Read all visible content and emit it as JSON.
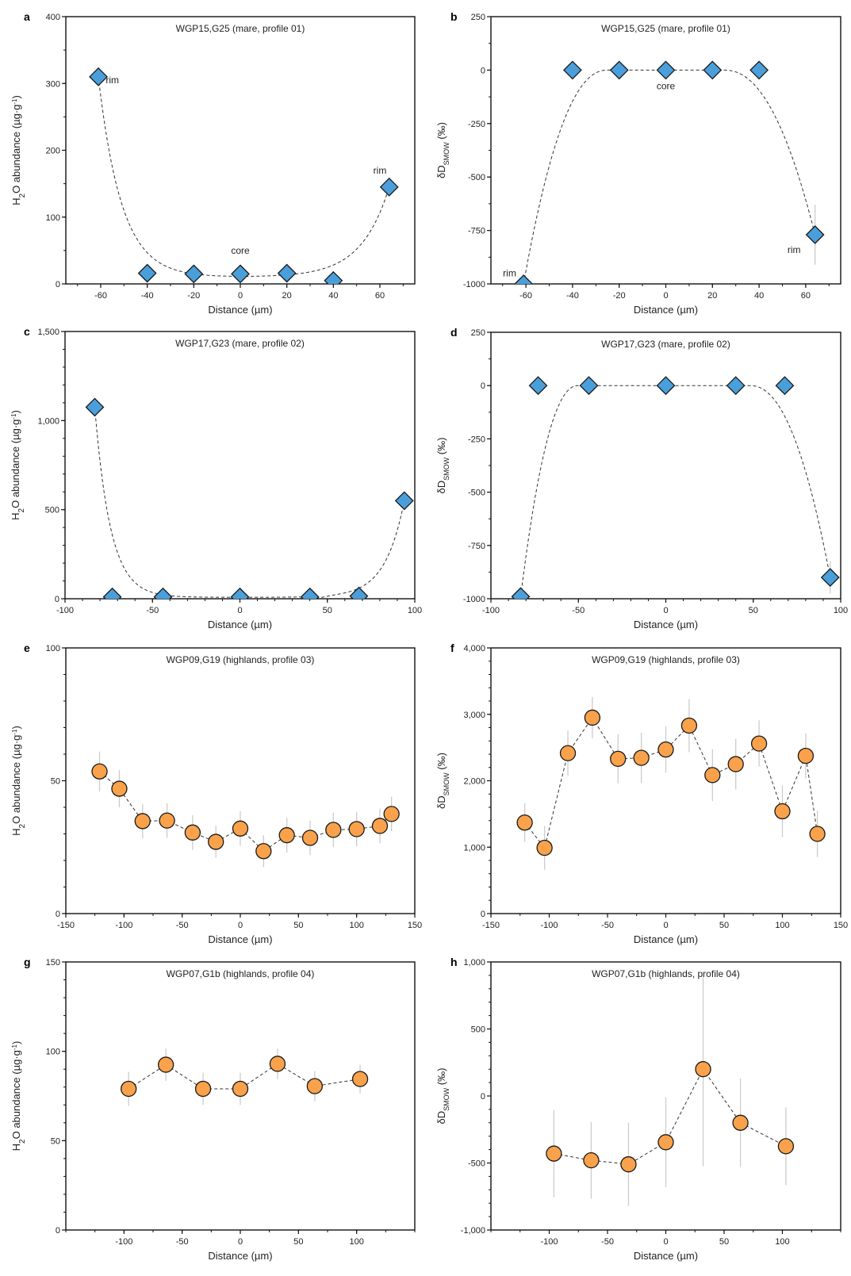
{
  "figure": {
    "marker_colors": {
      "mare": "#4A9FDB",
      "highlands": "#F9A24B"
    },
    "marker_edge": "#1a1a1a",
    "errorbar_color": "#cccccc",
    "line_color": "#333333"
  },
  "chart_data": [
    {
      "id": "a",
      "type": "scatter",
      "letter": "a",
      "title": "WGP15,G25 (mare, profile 01)",
      "xlabel": "Distance (µm)",
      "ylabel": "H₂O abundance (µg·g⁻¹)",
      "ylabel_kind": "h2o",
      "xlim": [
        -75,
        75
      ],
      "ylim": [
        0,
        400
      ],
      "xticks": [
        -60,
        -40,
        -20,
        0,
        20,
        40,
        60
      ],
      "xtick_labels": [
        "-60",
        "-40",
        "-20",
        "0",
        "20",
        "40",
        "60"
      ],
      "xminor": 10,
      "yticks": [
        0,
        100,
        200,
        300,
        400
      ],
      "ytick_labels": [
        "0",
        "100",
        "200",
        "300",
        "400"
      ],
      "yminor": 50,
      "marker": "diamond",
      "group": "mare",
      "connect": "none",
      "fit_curve": {
        "kind": "diffusion_h2o",
        "plateau": 10,
        "left_edge": -61,
        "left_value": 310,
        "right_edge": 64,
        "right_value": 145,
        "left_width": 10,
        "right_width": 12,
        "core_from": -28,
        "core_to": 33,
        "dip": 0
      },
      "points": [
        {
          "x": -61,
          "y": 310,
          "err": 0
        },
        {
          "x": -40,
          "y": 16,
          "err": 0
        },
        {
          "x": -20,
          "y": 15,
          "err": 0
        },
        {
          "x": 0,
          "y": 15,
          "err": 0
        },
        {
          "x": 20,
          "y": 16,
          "err": 0
        },
        {
          "x": 40,
          "y": 5,
          "err": 0
        },
        {
          "x": 64,
          "y": 145,
          "err": 0
        }
      ],
      "annotations": [
        {
          "text": "rim",
          "x": -55,
          "y": 305
        },
        {
          "text": "rim",
          "x": 60,
          "y": 170
        },
        {
          "text": "core",
          "x": 0,
          "y": 50
        }
      ]
    },
    {
      "id": "b",
      "type": "scatter",
      "letter": "b",
      "title": "WGP15,G25 (mare, profile 01)",
      "xlabel": "Distance (µm)",
      "ylabel": "δD_SMOW (‰)",
      "ylabel_kind": "dd",
      "xlim": [
        -75,
        75
      ],
      "ylim": [
        -1000,
        250
      ],
      "xticks": [
        -60,
        -40,
        -20,
        0,
        20,
        40,
        60
      ],
      "xtick_labels": [
        "-60",
        "-40",
        "-20",
        "0",
        "20",
        "40",
        "60"
      ],
      "xminor": 10,
      "yticks": [
        -1000,
        -750,
        -500,
        -250,
        0,
        250
      ],
      "ytick_labels": [
        "-1000",
        "-750",
        "-500",
        "-250",
        "0",
        "250"
      ],
      "yminor": 125,
      "marker": "diamond",
      "group": "mare",
      "connect": "none",
      "fit_curve": {
        "kind": "plateau",
        "top": 0,
        "bottom": -1000,
        "left_x": -61,
        "right_x": 64,
        "right_value": -770,
        "left_knee": -25,
        "right_knee": 25
      },
      "points": [
        {
          "x": -61,
          "y": -1000,
          "err": 0
        },
        {
          "x": -40,
          "y": 0,
          "err": 0
        },
        {
          "x": -20,
          "y": 0,
          "err": 0
        },
        {
          "x": 0,
          "y": 0,
          "err": 0
        },
        {
          "x": 20,
          "y": 0,
          "err": 0
        },
        {
          "x": 40,
          "y": 0,
          "err": 0
        },
        {
          "x": 64,
          "y": -770,
          "err": 140
        }
      ],
      "annotations": [
        {
          "text": "rim",
          "x": -67,
          "y": -950
        },
        {
          "text": "rim",
          "x": 55,
          "y": -840
        },
        {
          "text": "core",
          "x": 0,
          "y": -75
        }
      ]
    },
    {
      "id": "c",
      "type": "scatter",
      "letter": "c",
      "title": "WGP17,G23 (mare, profile 02)",
      "xlabel": "Distance (µm)",
      "ylabel": "H₂O abundance (µg·g⁻¹)",
      "ylabel_kind": "h2o",
      "xlim": [
        -100,
        100
      ],
      "ylim": [
        0,
        1500
      ],
      "xticks": [
        -100,
        -50,
        0,
        50,
        100
      ],
      "xtick_labels": [
        "-100",
        "-50",
        "0",
        "50",
        "100"
      ],
      "xminor": 10,
      "yticks": [
        0,
        500,
        1000,
        1500
      ],
      "ytick_labels": [
        "0",
        "500",
        "1,000",
        "1,500"
      ],
      "yminor": 100,
      "marker": "diamond",
      "group": "mare",
      "connect": "none",
      "fit_curve": {
        "kind": "diffusion_h2o",
        "plateau": 8,
        "left_edge": -83,
        "left_value": 1075,
        "right_edge": 94,
        "right_value": 550,
        "left_width": 9,
        "right_width": 11,
        "core_from": -55,
        "core_to": 45,
        "dip": 8
      },
      "points": [
        {
          "x": -83,
          "y": 1075,
          "err": 0
        },
        {
          "x": -73,
          "y": 10,
          "err": 0
        },
        {
          "x": -44,
          "y": 10,
          "err": 0
        },
        {
          "x": 0,
          "y": 10,
          "err": 0
        },
        {
          "x": 40,
          "y": 10,
          "err": 0
        },
        {
          "x": 68,
          "y": 15,
          "err": 0
        },
        {
          "x": 94,
          "y": 550,
          "err": 0
        }
      ],
      "annotations": []
    },
    {
      "id": "d",
      "type": "scatter",
      "letter": "d",
      "title": "WGP17,G23 (mare, profile 02)",
      "xlabel": "Distance (µm)",
      "ylabel": "δD_SMOW (‰)",
      "ylabel_kind": "dd",
      "xlim": [
        -100,
        100
      ],
      "ylim": [
        -1000,
        250
      ],
      "xticks": [
        -100,
        -50,
        0,
        50,
        100
      ],
      "xtick_labels": [
        "-100",
        "-50",
        "0",
        "50",
        "100"
      ],
      "xminor": 10,
      "yticks": [
        -1000,
        -750,
        -500,
        -250,
        0,
        250
      ],
      "ytick_labels": [
        "-1000",
        "-750",
        "-500",
        "-250",
        "0",
        "250"
      ],
      "yminor": 125,
      "marker": "diamond",
      "group": "mare",
      "connect": "none",
      "fit_curve": {
        "kind": "plateau",
        "top": 0,
        "bottom": -990,
        "left_x": -83,
        "right_x": 94,
        "right_value": -900,
        "left_knee": -50,
        "right_knee": 48
      },
      "points": [
        {
          "x": -83,
          "y": -990,
          "err": 0
        },
        {
          "x": -73,
          "y": 0,
          "err": 0
        },
        {
          "x": -44,
          "y": 0,
          "err": 0
        },
        {
          "x": 0,
          "y": 0,
          "err": 0
        },
        {
          "x": 40,
          "y": 0,
          "err": 0
        },
        {
          "x": 68,
          "y": 0,
          "err": 0
        },
        {
          "x": 94,
          "y": -900,
          "err": 75
        }
      ],
      "annotations": []
    },
    {
      "id": "e",
      "type": "scatter",
      "letter": "e",
      "title": "WGP09,G19 (highlands, profile 03)",
      "xlabel": "Distance (µm)",
      "ylabel": "H₂O abundance (µg·g⁻¹)",
      "ylabel_kind": "h2o",
      "xlim": [
        -150,
        150
      ],
      "ylim": [
        0,
        100
      ],
      "xticks": [
        -150,
        -100,
        -50,
        0,
        50,
        100,
        150
      ],
      "xtick_labels": [
        "-150",
        "-100",
        "-50",
        "0",
        "50",
        "100",
        "150"
      ],
      "xminor": 25,
      "yticks": [
        0,
        50,
        100
      ],
      "ytick_labels": [
        "0",
        "50",
        "100"
      ],
      "yminor": 10,
      "marker": "circle",
      "group": "highlands",
      "connect": "dashed",
      "points": [
        {
          "x": -121,
          "y": 53.5,
          "err": 7.5
        },
        {
          "x": -104,
          "y": 47,
          "err": 7
        },
        {
          "x": -84,
          "y": 34.8,
          "err": 6.5
        },
        {
          "x": -63,
          "y": 35,
          "err": 6.5
        },
        {
          "x": -41,
          "y": 30.5,
          "err": 6.5
        },
        {
          "x": -21,
          "y": 27,
          "err": 6
        },
        {
          "x": 0,
          "y": 32,
          "err": 6.5
        },
        {
          "x": 20,
          "y": 23.5,
          "err": 6
        },
        {
          "x": 40,
          "y": 29.5,
          "err": 6.5
        },
        {
          "x": 60,
          "y": 28.5,
          "err": 6.5
        },
        {
          "x": 80,
          "y": 31.5,
          "err": 6.5
        },
        {
          "x": 100,
          "y": 31.8,
          "err": 6.5
        },
        {
          "x": 120,
          "y": 33,
          "err": 6.5
        },
        {
          "x": 130,
          "y": 37.5,
          "err": 6.5
        }
      ],
      "annotations": []
    },
    {
      "id": "f",
      "type": "scatter",
      "letter": "f",
      "title": "WGP09,G19 (highlands, profile 03)",
      "xlabel": "Distance (µm)",
      "ylabel": "δD_SMOW (‰)",
      "ylabel_kind": "dd",
      "xlim": [
        -150,
        150
      ],
      "ylim": [
        0,
        4000
      ],
      "xticks": [
        -150,
        -100,
        -50,
        0,
        50,
        100,
        150
      ],
      "xtick_labels": [
        "-150",
        "-100",
        "-50",
        "0",
        "50",
        "100",
        "150"
      ],
      "xminor": 25,
      "yticks": [
        0,
        1000,
        2000,
        3000,
        4000
      ],
      "ytick_labels": [
        "0",
        "1,000",
        "2,000",
        "3,000",
        "4,000"
      ],
      "yminor": 200,
      "marker": "circle",
      "group": "highlands",
      "connect": "dashed",
      "points": [
        {
          "x": -121,
          "y": 1370,
          "err": 290
        },
        {
          "x": -104,
          "y": 990,
          "err": 330
        },
        {
          "x": -84,
          "y": 2415,
          "err": 340
        },
        {
          "x": -63,
          "y": 2950,
          "err": 310
        },
        {
          "x": -41,
          "y": 2330,
          "err": 370
        },
        {
          "x": -21,
          "y": 2345,
          "err": 380
        },
        {
          "x": 0,
          "y": 2470,
          "err": 350
        },
        {
          "x": 20,
          "y": 2830,
          "err": 400
        },
        {
          "x": 40,
          "y": 2085,
          "err": 390
        },
        {
          "x": 60,
          "y": 2250,
          "err": 380
        },
        {
          "x": 80,
          "y": 2560,
          "err": 350
        },
        {
          "x": 100,
          "y": 1540,
          "err": 390
        },
        {
          "x": 120,
          "y": 2375,
          "err": 340
        },
        {
          "x": 130,
          "y": 1200,
          "err": 350
        }
      ],
      "annotations": []
    },
    {
      "id": "g",
      "type": "scatter",
      "letter": "g",
      "title": "WGP07,G1b (highlands, profile 04)",
      "xlabel": "Distance (µm)",
      "ylabel": "H₂O abundance (µg·g⁻¹)",
      "ylabel_kind": "h2o",
      "xlim": [
        -150,
        150
      ],
      "ylim": [
        0,
        150
      ],
      "xticks": [
        -100,
        -50,
        0,
        50,
        100
      ],
      "xtick_labels": [
        "-100",
        "-50",
        "0",
        "50",
        "100"
      ],
      "xminor": 25,
      "yticks": [
        0,
        50,
        100,
        150
      ],
      "ytick_labels": [
        "0",
        "50",
        "100",
        "150"
      ],
      "yminor": 10,
      "marker": "circle",
      "group": "highlands",
      "connect": "dashed",
      "points": [
        {
          "x": -96,
          "y": 79,
          "err": 9.5
        },
        {
          "x": -64,
          "y": 92.5,
          "err": 9
        },
        {
          "x": -32,
          "y": 79,
          "err": 9
        },
        {
          "x": 0,
          "y": 79,
          "err": 9
        },
        {
          "x": 32,
          "y": 93,
          "err": 8.5
        },
        {
          "x": 64,
          "y": 80.5,
          "err": 8.5
        },
        {
          "x": 103,
          "y": 84.5,
          "err": 8
        }
      ],
      "annotations": []
    },
    {
      "id": "h",
      "type": "scatter",
      "letter": "h",
      "title": "WGP07,G1b (highlands, profile 04)",
      "xlabel": "Distance (µm)",
      "ylabel": "δD_SMOW (‰)",
      "ylabel_kind": "dd",
      "xlim": [
        -150,
        150
      ],
      "ylim": [
        -1000,
        1000
      ],
      "xticks": [
        -100,
        -50,
        0,
        50,
        100
      ],
      "xtick_labels": [
        "-100",
        "-50",
        "0",
        "50",
        "100"
      ],
      "xminor": 25,
      "yticks": [
        -1000,
        -500,
        0,
        500,
        1000
      ],
      "ytick_labels": [
        "-1,000",
        "-500",
        "0",
        "500",
        "1,000"
      ],
      "yminor": 100,
      "marker": "circle",
      "group": "highlands",
      "connect": "dashed",
      "points": [
        {
          "x": -96,
          "y": -430,
          "err": 325
        },
        {
          "x": -64,
          "y": -480,
          "err": 285
        },
        {
          "x": -32,
          "y": -510,
          "err": 310
        },
        {
          "x": 0,
          "y": -345,
          "err": 335
        },
        {
          "x": 32,
          "y": 200,
          "err": 725
        },
        {
          "x": 64,
          "y": -200,
          "err": 330
        },
        {
          "x": 103,
          "y": -375,
          "err": 290
        }
      ],
      "annotations": []
    }
  ]
}
